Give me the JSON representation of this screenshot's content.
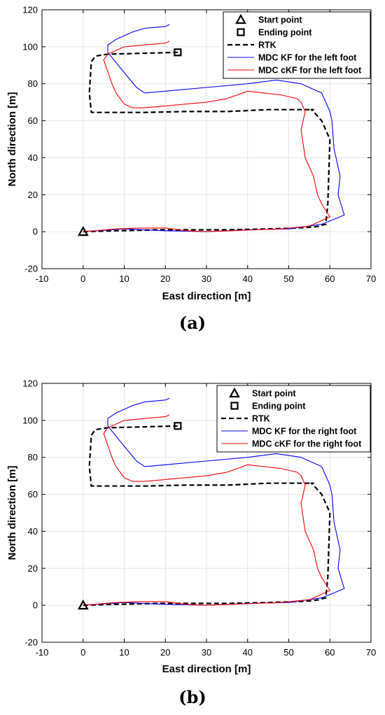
{
  "chart_data": [
    {
      "type": "line",
      "panel_label": "(a)",
      "xlabel": "East direction [m]",
      "ylabel": "North direction [m]",
      "xlim": [
        -10,
        70
      ],
      "ylim": [
        -20,
        120
      ],
      "xticks": [
        "-10",
        "0",
        "10",
        "20",
        "30",
        "40",
        "50",
        "60",
        "70"
      ],
      "yticks": [
        "-20",
        "0",
        "20",
        "40",
        "60",
        "80",
        "100",
        "120"
      ],
      "grid": true,
      "legend_position": "top-right",
      "legend": [
        "Start point",
        "Ending point",
        "RTK",
        "MDC KF for the left foot",
        "MDC cKF for the left foot"
      ],
      "markers": [
        {
          "name": "Start point",
          "shape": "triangle",
          "x": 0,
          "y": 0
        },
        {
          "name": "Ending point",
          "shape": "square",
          "x": 23,
          "y": 97
        }
      ],
      "series": [
        {
          "name": "RTK",
          "style": "dashed",
          "color": "#000000",
          "x": [
            0,
            8,
            18,
            25,
            35,
            45,
            52,
            56,
            57.5,
            58,
            59,
            59.5,
            60,
            58,
            56,
            55.5,
            56,
            55,
            52,
            45,
            35,
            25,
            15,
            5,
            2,
            1.5,
            2,
            3,
            6,
            15,
            23
          ],
          "y": [
            0,
            0.5,
            1,
            1,
            1,
            1.5,
            2,
            2.5,
            3,
            3.5,
            4,
            15,
            50,
            60,
            65,
            66,
            66,
            66,
            66,
            66,
            65,
            65,
            64.5,
            64.5,
            64.5,
            75,
            92,
            95,
            96,
            96.5,
            97
          ]
        },
        {
          "name": "MDC KF for the left foot",
          "style": "solid",
          "color": "#0000ff",
          "x": [
            0,
            10,
            20,
            30,
            40,
            50,
            58,
            63.5,
            62,
            62.5,
            61,
            60.5,
            60,
            58,
            53,
            47,
            40,
            30,
            20,
            15,
            13,
            10,
            6,
            6,
            8,
            12,
            15,
            20,
            21
          ],
          "y": [
            0,
            1.5,
            0.5,
            0,
            1,
            1.5,
            4,
            9,
            20,
            30,
            45,
            60,
            65,
            75,
            80,
            82,
            80,
            78,
            76,
            75,
            78,
            86,
            97,
            101,
            104,
            108,
            110,
            111,
            112
          ]
        },
        {
          "name": "MDC cKF for the left foot",
          "style": "solid",
          "color": "#ff0000",
          "x": [
            0,
            8,
            14,
            20,
            25,
            30,
            36,
            42,
            48,
            55,
            60,
            58,
            57,
            56,
            54,
            53,
            54,
            53,
            52,
            48,
            40,
            35,
            30,
            20,
            15,
            12,
            10,
            8,
            7,
            5,
            6,
            8,
            10,
            15,
            20,
            21
          ],
          "y": [
            0,
            1.5,
            2,
            2,
            0.5,
            0,
            0.5,
            1,
            1.5,
            3,
            8,
            15,
            20,
            30,
            40,
            55,
            65,
            70,
            72,
            74,
            76,
            72,
            70,
            68,
            67,
            67,
            69,
            75,
            80,
            93,
            96,
            98,
            100,
            101,
            102,
            103
          ]
        }
      ]
    },
    {
      "type": "line",
      "panel_label": "(b)",
      "xlabel": "East direction [m]",
      "ylabel": "North direction [m]",
      "xlim": [
        -10,
        70
      ],
      "ylim": [
        -20,
        120
      ],
      "xticks": [
        "-10",
        "0",
        "10",
        "20",
        "30",
        "40",
        "50",
        "60",
        "70"
      ],
      "yticks": [
        "-20",
        "0",
        "20",
        "40",
        "60",
        "80",
        "100",
        "120"
      ],
      "grid": true,
      "legend_position": "top-right",
      "legend": [
        "Start point",
        "Ending point",
        "RTK",
        "MDC KF for the right foot",
        "MDC cKF for the right foot"
      ],
      "markers": [
        {
          "name": "Start point",
          "shape": "triangle",
          "x": 0,
          "y": 0
        },
        {
          "name": "Ending point",
          "shape": "square",
          "x": 23,
          "y": 97
        }
      ],
      "series": [
        {
          "name": "RTK",
          "style": "dashed",
          "color": "#000000",
          "x": [
            0,
            8,
            18,
            25,
            35,
            45,
            52,
            56,
            57.5,
            58,
            59,
            59.5,
            60,
            58,
            56,
            55.5,
            56,
            55,
            52,
            45,
            35,
            25,
            15,
            5,
            2,
            1.5,
            2,
            3,
            6,
            15,
            23
          ],
          "y": [
            0,
            0.5,
            1,
            1,
            1,
            1.5,
            2,
            2.5,
            3,
            3.5,
            4,
            15,
            50,
            60,
            65,
            66,
            66,
            66,
            66,
            66,
            65,
            65,
            64.5,
            64.5,
            64.5,
            75,
            92,
            95,
            96,
            96.5,
            97
          ]
        },
        {
          "name": "MDC KF for the right foot",
          "style": "solid",
          "color": "#0000ff",
          "x": [
            0,
            10,
            20,
            30,
            40,
            50,
            58,
            63.5,
            62,
            62.5,
            61,
            60.5,
            60,
            58,
            53,
            47,
            40,
            30,
            20,
            15,
            13,
            10,
            6,
            6,
            8,
            12,
            15,
            20,
            21
          ],
          "y": [
            0,
            1.5,
            0.5,
            0,
            1,
            1.5,
            4,
            9,
            20,
            30,
            45,
            60,
            65,
            75,
            80,
            82,
            80,
            78,
            76,
            75,
            78,
            86,
            97,
            101,
            104,
            108,
            110,
            111,
            112
          ]
        },
        {
          "name": "MDC cKF for the right foot",
          "style": "solid",
          "color": "#ff0000",
          "x": [
            0,
            8,
            14,
            20,
            25,
            30,
            36,
            42,
            48,
            55,
            60,
            58,
            57,
            56,
            54,
            53,
            54,
            53,
            52,
            48,
            40,
            35,
            30,
            20,
            15,
            12,
            10,
            8,
            7,
            5,
            6,
            8,
            10,
            15,
            20,
            21
          ],
          "y": [
            0,
            1.5,
            2,
            2,
            0.5,
            0,
            0.5,
            1,
            1.5,
            3,
            8,
            15,
            20,
            30,
            40,
            55,
            65,
            70,
            72,
            74,
            76,
            72,
            70,
            68,
            67,
            67,
            69,
            75,
            80,
            93,
            96,
            98,
            100,
            101,
            102,
            103
          ]
        }
      ]
    }
  ]
}
